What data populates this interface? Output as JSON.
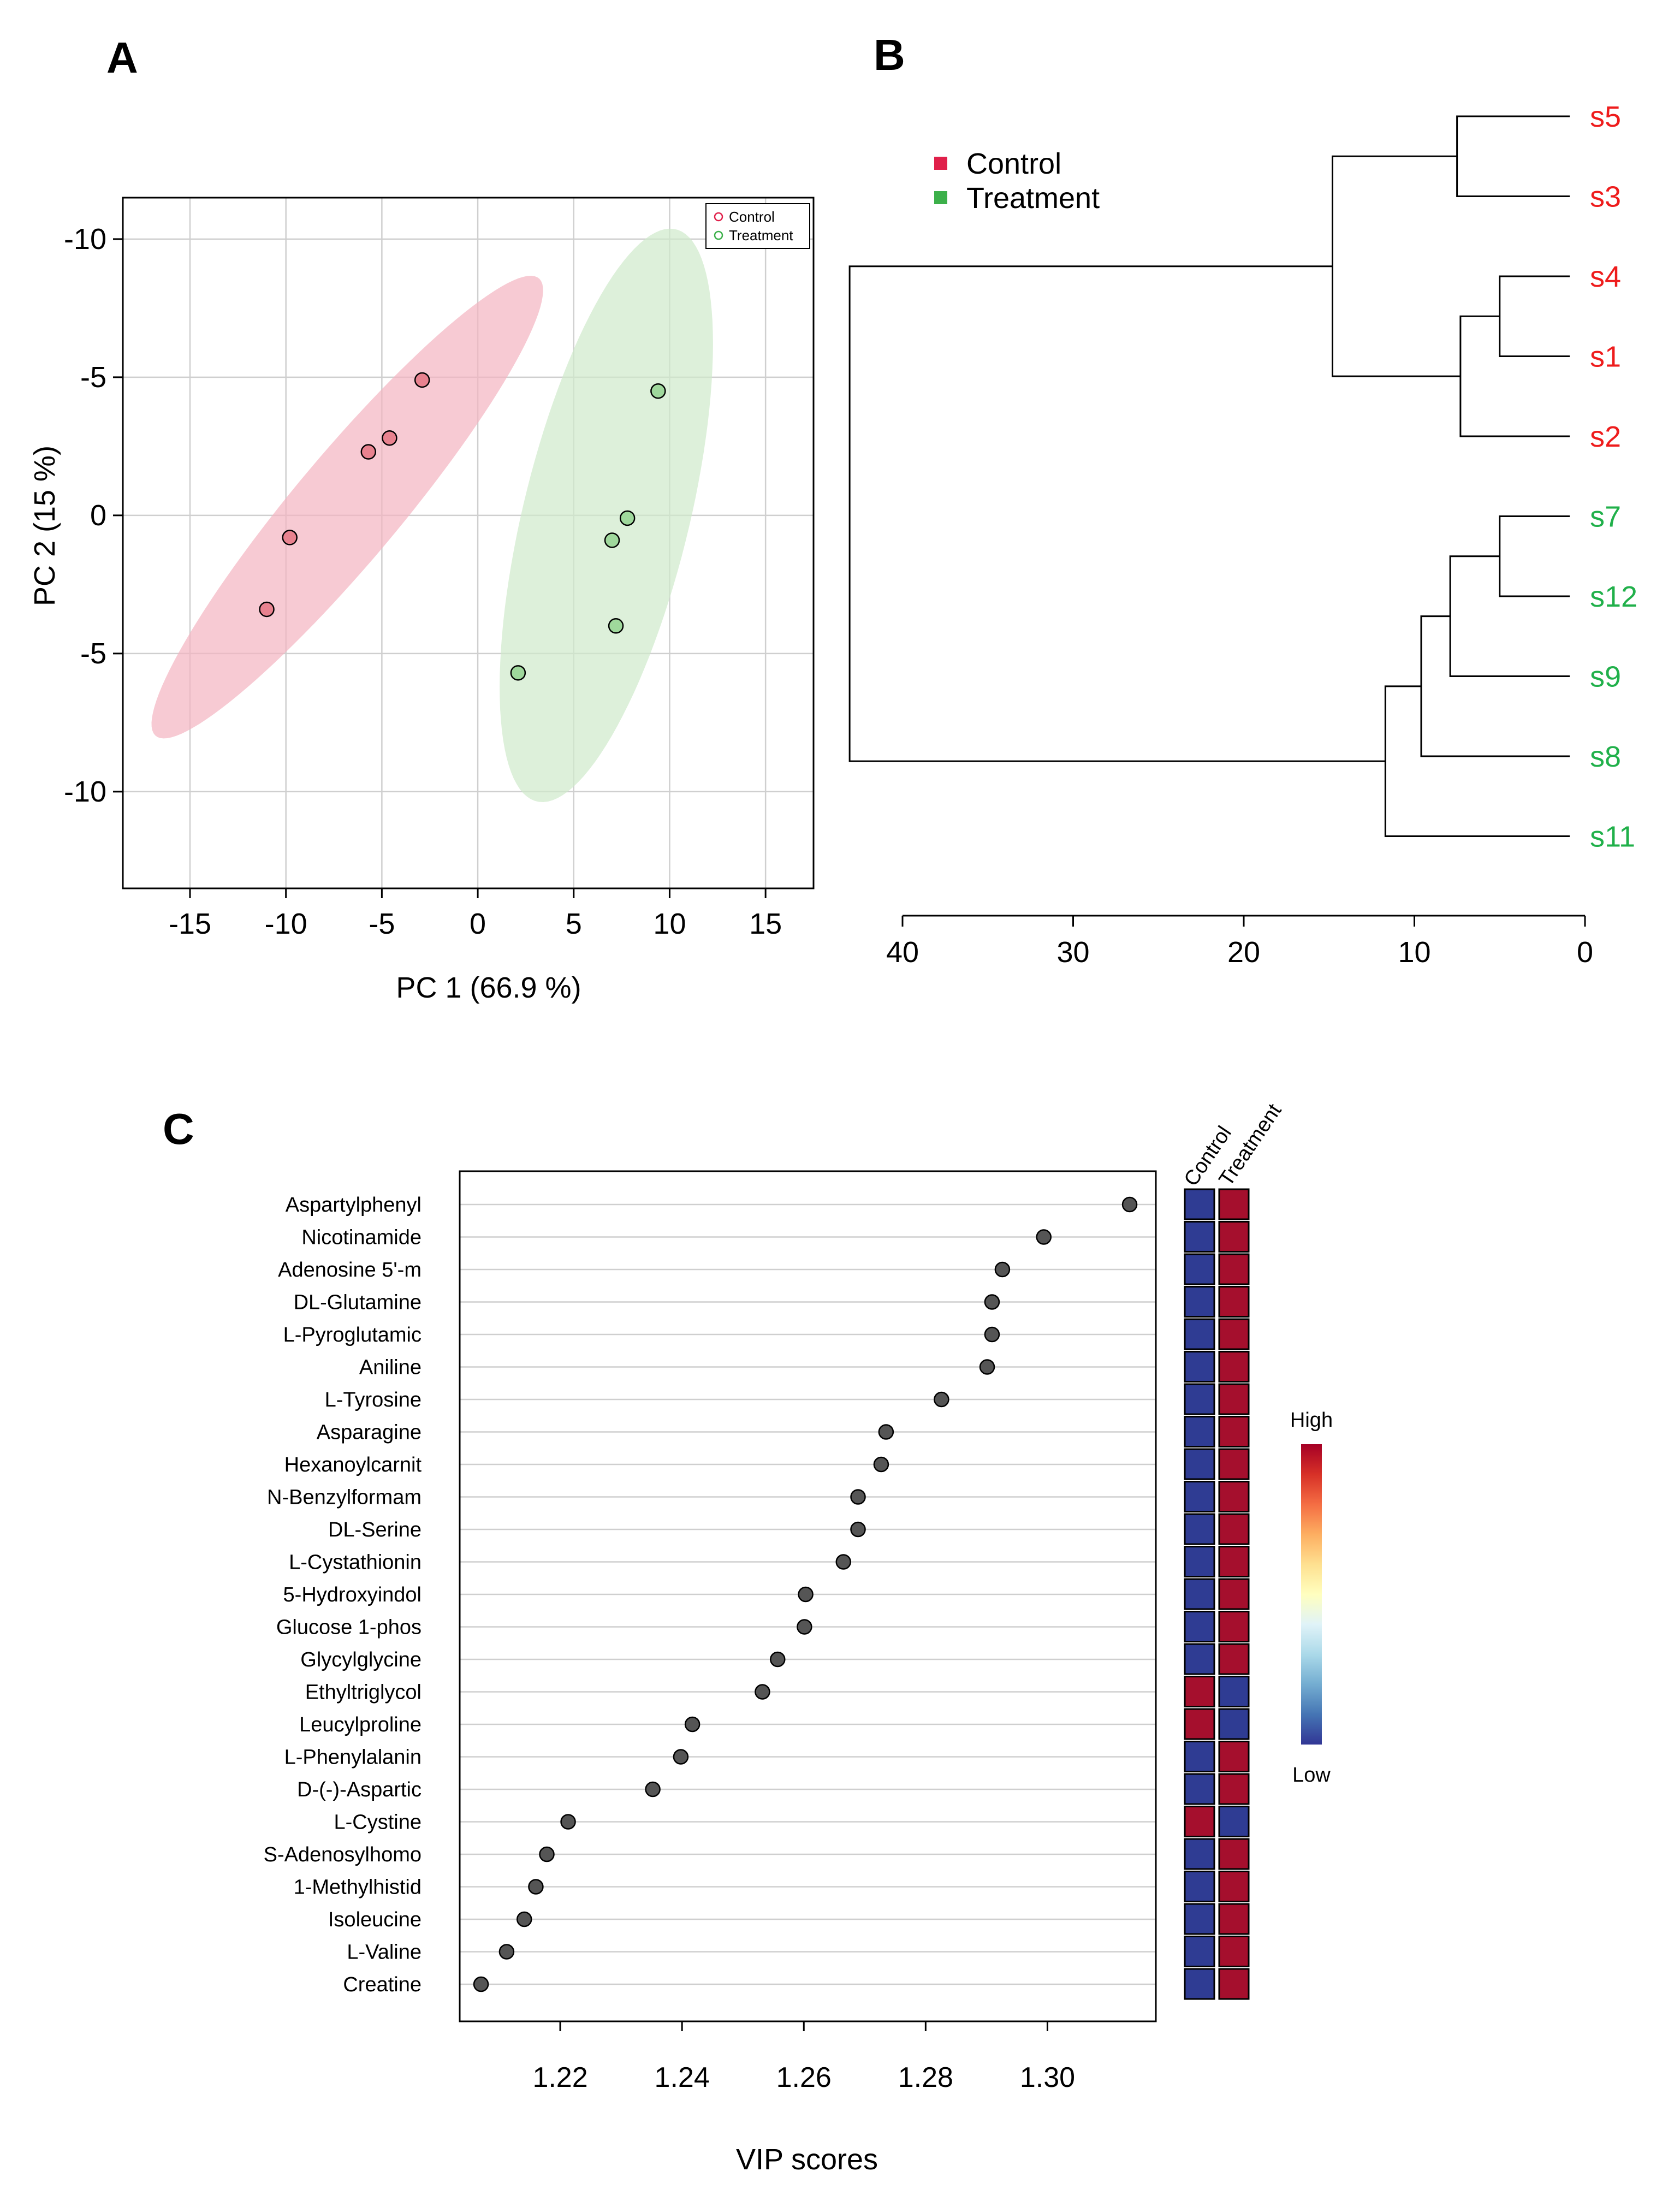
{
  "panels": {
    "A": "A",
    "B": "B",
    "C": "C"
  },
  "chart_data": [
    {
      "panel": "A",
      "type": "scatter",
      "title": "",
      "xlabel": "PC 1 (66.9 %)",
      "ylabel": "PC 2 (15 %)",
      "xlim": [
        -18.5,
        17.5
      ],
      "ylim": [
        -13.5,
        11.5
      ],
      "y_reversed_tick_labels": true,
      "xticks": [
        -15,
        -10,
        -5,
        0,
        5,
        10,
        15
      ],
      "xtick_labels": [
        "-15",
        "-10",
        "-5",
        "0",
        "5",
        "10",
        "15"
      ],
      "yticks": [
        10,
        5,
        0,
        -5,
        -10
      ],
      "ytick_labels": [
        "-10",
        "-5",
        "0",
        "-5",
        "-10"
      ],
      "grid": true,
      "legend_position": "top-right",
      "series": [
        {
          "name": "Control",
          "color": "#e8828f",
          "ellipse_color": "#f3b3c0",
          "x": [
            -2.9,
            -4.6,
            -5.7,
            -9.8,
            -11.0
          ],
          "y": [
            4.9,
            2.8,
            2.3,
            -0.8,
            -3.4
          ],
          "ellipse": {
            "center": [
              -6.8,
              0.3
            ],
            "semi_axes": [
              13.0,
              2.3
            ],
            "angle_deg": 39
          }
        },
        {
          "name": "Treatment",
          "color": "#9fd89c",
          "ellipse_color": "#cfeacb",
          "x": [
            9.4,
            7.8,
            7.0,
            7.2,
            2.1
          ],
          "y": [
            4.5,
            -0.1,
            -0.9,
            -4.0,
            -5.7
          ],
          "ellipse": {
            "center": [
              6.7,
              0.0
            ],
            "semi_axes": [
              11.0,
              4.2
            ],
            "angle_deg": 69
          }
        }
      ]
    },
    {
      "panel": "B",
      "type": "dendrogram",
      "title": "",
      "xlim": [
        40,
        0
      ],
      "xticks": [
        40,
        30,
        20,
        10,
        0
      ],
      "xtick_labels": [
        "40",
        "30",
        "20",
        "10",
        "0"
      ],
      "legend": [
        {
          "label": "Control",
          "color": "#e0204a"
        },
        {
          "label": "Treatment",
          "color": "#3cb04a"
        }
      ],
      "leaves": [
        {
          "label": "s5",
          "group": "Control",
          "color": "#ee1c1c"
        },
        {
          "label": "s3",
          "group": "Control",
          "color": "#ee1c1c"
        },
        {
          "label": "s4",
          "group": "Control",
          "color": "#ee1c1c"
        },
        {
          "label": "s1",
          "group": "Control",
          "color": "#ee1c1c"
        },
        {
          "label": "s2",
          "group": "Control",
          "color": "#ee1c1c"
        },
        {
          "label": "s7",
          "group": "Treatment",
          "color": "#20b04a"
        },
        {
          "label": "s12",
          "group": "Treatment",
          "color": "#20b04a"
        },
        {
          "label": "s9",
          "group": "Treatment",
          "color": "#20b04a"
        },
        {
          "label": "s8",
          "group": "Treatment",
          "color": "#20b04a"
        },
        {
          "label": "s11",
          "group": "Treatment",
          "color": "#20b04a"
        }
      ],
      "merges": [
        {
          "a": "L0",
          "b": "L1",
          "height": 7.5
        },
        {
          "a": "L2",
          "b": "L3",
          "height": 5.0
        },
        {
          "a": "M1",
          "b": "L4",
          "height": 7.3
        },
        {
          "a": "M0",
          "b": "M2",
          "height": 14.8
        },
        {
          "a": "L5",
          "b": "L6",
          "height": 5.0
        },
        {
          "a": "M4",
          "b": "L7",
          "height": 7.9
        },
        {
          "a": "M5",
          "b": "L8",
          "height": 9.6
        },
        {
          "a": "M6",
          "b": "L9",
          "height": 11.7
        },
        {
          "a": "M3",
          "b": "M7",
          "height": 43.1
        }
      ]
    },
    {
      "panel": "C",
      "type": "scatter",
      "title": "",
      "xlabel": "VIP scores",
      "ylabel": "",
      "xlim": [
        1.2035,
        1.3178
      ],
      "xticks": [
        1.22,
        1.24,
        1.26,
        1.28,
        1.3
      ],
      "xtick_labels": [
        "1.22",
        "1.24",
        "1.26",
        "1.28",
        "1.30"
      ],
      "point_color": "#555555",
      "metabolites": [
        {
          "name": "Aspartylphenyl",
          "vip": 1.3135,
          "high_group": "Treatment"
        },
        {
          "name": "Nicotinamide",
          "vip": 1.2994,
          "high_group": "Treatment"
        },
        {
          "name": "Adenosine 5'-m",
          "vip": 1.2926,
          "high_group": "Treatment"
        },
        {
          "name": "DL-Glutamine",
          "vip": 1.2909,
          "high_group": "Treatment"
        },
        {
          "name": "L-Pyroglutamic",
          "vip": 1.2909,
          "high_group": "Treatment"
        },
        {
          "name": "Aniline",
          "vip": 1.2901,
          "high_group": "Treatment"
        },
        {
          "name": "L-Tyrosine",
          "vip": 1.2826,
          "high_group": "Treatment"
        },
        {
          "name": "Asparagine",
          "vip": 1.2735,
          "high_group": "Treatment"
        },
        {
          "name": "Hexanoylcarnit",
          "vip": 1.2727,
          "high_group": "Treatment"
        },
        {
          "name": "N-Benzylformam",
          "vip": 1.2689,
          "high_group": "Treatment"
        },
        {
          "name": "DL-Serine",
          "vip": 1.2689,
          "high_group": "Treatment"
        },
        {
          "name": "L-Cystathionin",
          "vip": 1.2665,
          "high_group": "Treatment"
        },
        {
          "name": "5-Hydroxyindol",
          "vip": 1.2603,
          "high_group": "Treatment"
        },
        {
          "name": "Glucose 1-phos",
          "vip": 1.2601,
          "high_group": "Treatment"
        },
        {
          "name": "Glycylglycine",
          "vip": 1.2557,
          "high_group": "Treatment"
        },
        {
          "name": "Ethyltriglycol",
          "vip": 1.2532,
          "high_group": "Control"
        },
        {
          "name": "Leucylproline",
          "vip": 1.2417,
          "high_group": "Control"
        },
        {
          "name": "L-Phenylalanin",
          "vip": 1.2398,
          "high_group": "Treatment"
        },
        {
          "name": "D-(-)-Aspartic",
          "vip": 1.2352,
          "high_group": "Treatment"
        },
        {
          "name": "L-Cystine",
          "vip": 1.2213,
          "high_group": "Control"
        },
        {
          "name": "S-Adenosylhomo",
          "vip": 1.2178,
          "high_group": "Treatment"
        },
        {
          "name": "1-Methylhistid",
          "vip": 1.216,
          "high_group": "Treatment"
        },
        {
          "name": "Isoleucine",
          "vip": 1.2141,
          "high_group": "Treatment"
        },
        {
          "name": "L-Valine",
          "vip": 1.2112,
          "high_group": "Treatment"
        },
        {
          "name": "Creatine",
          "vip": 1.207,
          "high_group": "Treatment"
        }
      ],
      "heatmap": {
        "columns": [
          "Control",
          "Treatment"
        ],
        "high_color": "#a50f2d",
        "low_color": "#2f3c93",
        "colorbar_high_label": "High",
        "colorbar_low_label": "Low",
        "colorbar_colors": [
          "#a50026",
          "#d73027",
          "#f46d43",
          "#fdae61",
          "#fee090",
          "#ffffbf",
          "#e0f3f8",
          "#abd9e9",
          "#74add1",
          "#4575b4",
          "#313695"
        ]
      }
    }
  ]
}
